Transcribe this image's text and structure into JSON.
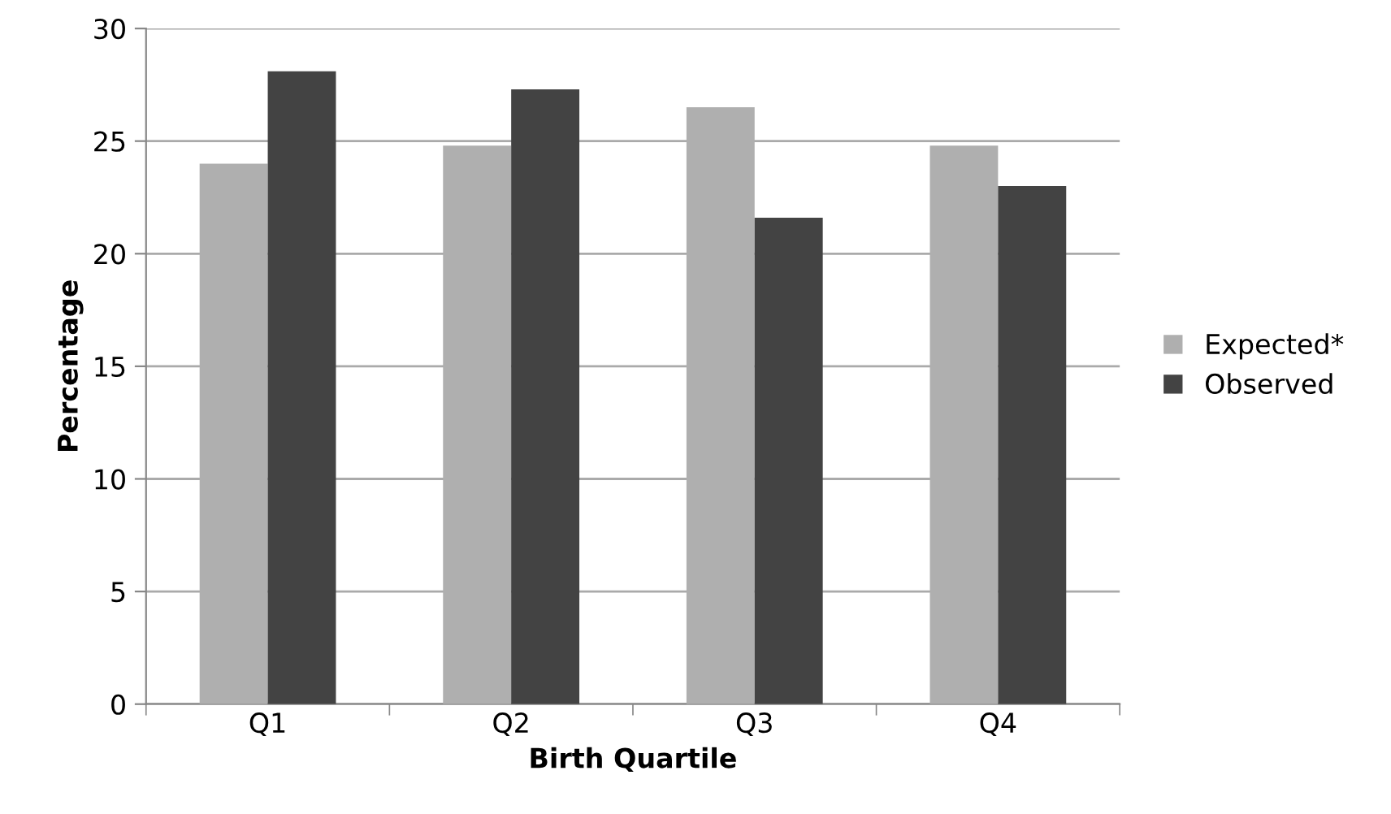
{
  "chart_data": {
    "type": "bar",
    "xlabel": "Birth Quartile",
    "ylabel": "Percentage",
    "categories": [
      "Q1",
      "Q2",
      "Q3",
      "Q4"
    ],
    "series": [
      {
        "name": "Expected*",
        "color": "#afafaf",
        "values": [
          24.0,
          24.8,
          26.5,
          24.8
        ]
      },
      {
        "name": "Observed",
        "color": "#434343",
        "values": [
          28.1,
          27.3,
          21.6,
          23.0
        ]
      }
    ],
    "ylim": [
      0,
      30
    ],
    "yticks": [
      0,
      5,
      10,
      15,
      20,
      25,
      30
    ],
    "grid": "y",
    "legend": "right"
  }
}
